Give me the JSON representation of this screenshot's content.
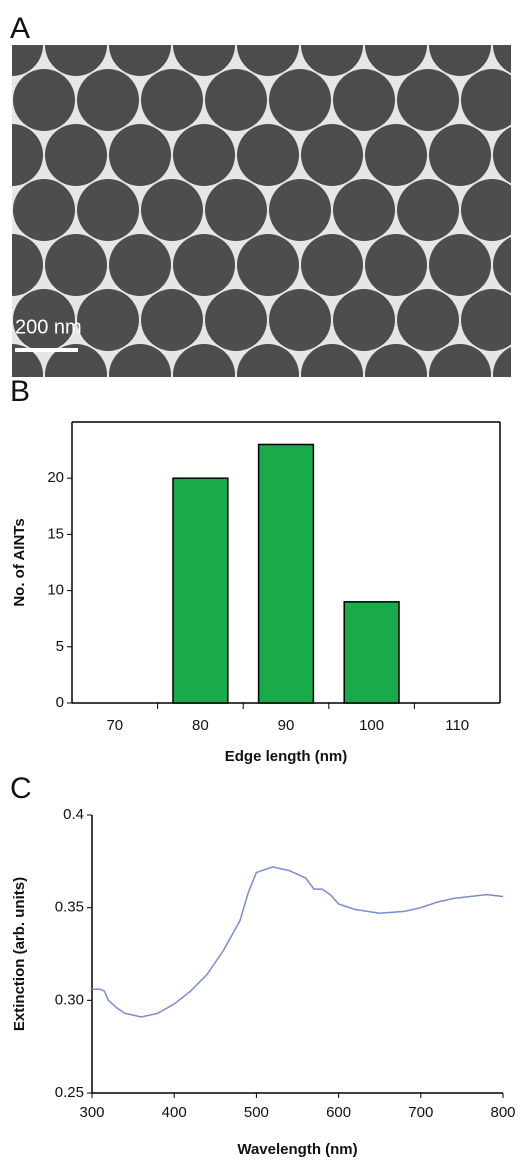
{
  "panel_labels": [
    "A",
    "B",
    "C"
  ],
  "scale_bar": "200 nm",
  "chart_data": [
    {
      "type": "bar",
      "xlabel": "Edge length (nm)",
      "ylabel": "No. of AINTs",
      "categories": [
        70,
        80,
        90,
        100,
        110
      ],
      "values": [
        0,
        20,
        23,
        9,
        0
      ],
      "color": "#1aaa4a",
      "ylim": [
        0,
        25
      ],
      "yticks": [
        0,
        5,
        10,
        15,
        20
      ]
    },
    {
      "type": "line",
      "xlabel": "Wavelength (nm)",
      "ylabel": "Extinction (arb. units)",
      "x": [
        300,
        310,
        315,
        320,
        330,
        340,
        360,
        380,
        400,
        420,
        440,
        460,
        480,
        490,
        500,
        520,
        540,
        560,
        570,
        580,
        590,
        600,
        620,
        650,
        680,
        700,
        720,
        740,
        760,
        780,
        800
      ],
      "values": [
        0.306,
        0.306,
        0.305,
        0.3,
        0.296,
        0.293,
        0.291,
        0.293,
        0.298,
        0.305,
        0.314,
        0.327,
        0.343,
        0.358,
        0.369,
        0.372,
        0.37,
        0.366,
        0.36,
        0.36,
        0.357,
        0.352,
        0.349,
        0.347,
        0.348,
        0.35,
        0.353,
        0.355,
        0.356,
        0.357,
        0.356
      ],
      "color": "#7b8ccf",
      "xlim": [
        300,
        800
      ],
      "xticks": [
        300,
        400,
        500,
        600,
        700,
        800
      ],
      "ylim": [
        0.25,
        0.4
      ],
      "yticks": [
        {
          "value": 0.25,
          "label": "0.25"
        },
        {
          "value": 0.3,
          "label": "0.30"
        },
        0.35,
        0.4
      ]
    }
  ]
}
